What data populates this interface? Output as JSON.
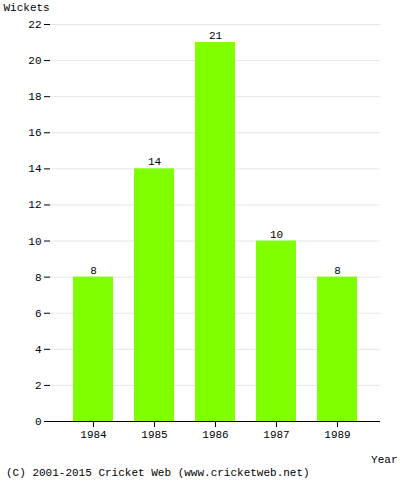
{
  "chart_data": {
    "type": "bar",
    "categories": [
      "1984",
      "1985",
      "1986",
      "1987",
      "1989"
    ],
    "values": [
      8,
      14,
      21,
      10,
      8
    ],
    "color": "#7fff00",
    "xlabel": "Year",
    "ylabel": "Wickets",
    "ylim": [
      0,
      22
    ],
    "yticks": [
      0,
      2,
      4,
      6,
      8,
      10,
      12,
      14,
      16,
      18,
      20,
      22
    ],
    "grid": true,
    "data_labels": true,
    "annotations": [
      "(C) 2001-2015 Cricket Web (www.cricketweb.net)"
    ]
  }
}
